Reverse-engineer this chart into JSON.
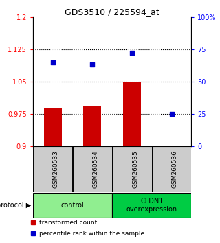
{
  "title": "GDS3510 / 225594_at",
  "samples": [
    "GSM260533",
    "GSM260534",
    "GSM260535",
    "GSM260536"
  ],
  "red_values": [
    0.988,
    0.993,
    1.048,
    0.901
  ],
  "blue_values": [
    65,
    63,
    72,
    25
  ],
  "ylim_left": [
    0.9,
    1.2
  ],
  "ylim_right": [
    0,
    100
  ],
  "yticks_left": [
    0.9,
    0.975,
    1.05,
    1.125,
    1.2
  ],
  "ytick_labels_left": [
    "0.9",
    "0.975",
    "1.05",
    "1.125",
    "1.2"
  ],
  "yticks_right": [
    0,
    25,
    50,
    75,
    100
  ],
  "ytick_labels_right": [
    "0",
    "25",
    "50",
    "75",
    "100%"
  ],
  "hlines": [
    0.975,
    1.05,
    1.125
  ],
  "groups": [
    {
      "label": "control",
      "samples": [
        0,
        1
      ],
      "color": "#90ee90"
    },
    {
      "label": "CLDN1\noverexpression",
      "samples": [
        2,
        3
      ],
      "color": "#00cc44"
    }
  ],
  "red_color": "#cc0000",
  "blue_color": "#0000cc",
  "bar_bottom": 0.9,
  "bar_width": 0.45,
  "legend_red": "transformed count",
  "legend_blue": "percentile rank within the sample",
  "protocol_label": "protocol",
  "x_positions": [
    1,
    2,
    3,
    4
  ],
  "sample_box_color": "#cccccc",
  "sample_box_edgecolor": "#000000",
  "figsize": [
    3.2,
    3.54
  ],
  "dpi": 100
}
